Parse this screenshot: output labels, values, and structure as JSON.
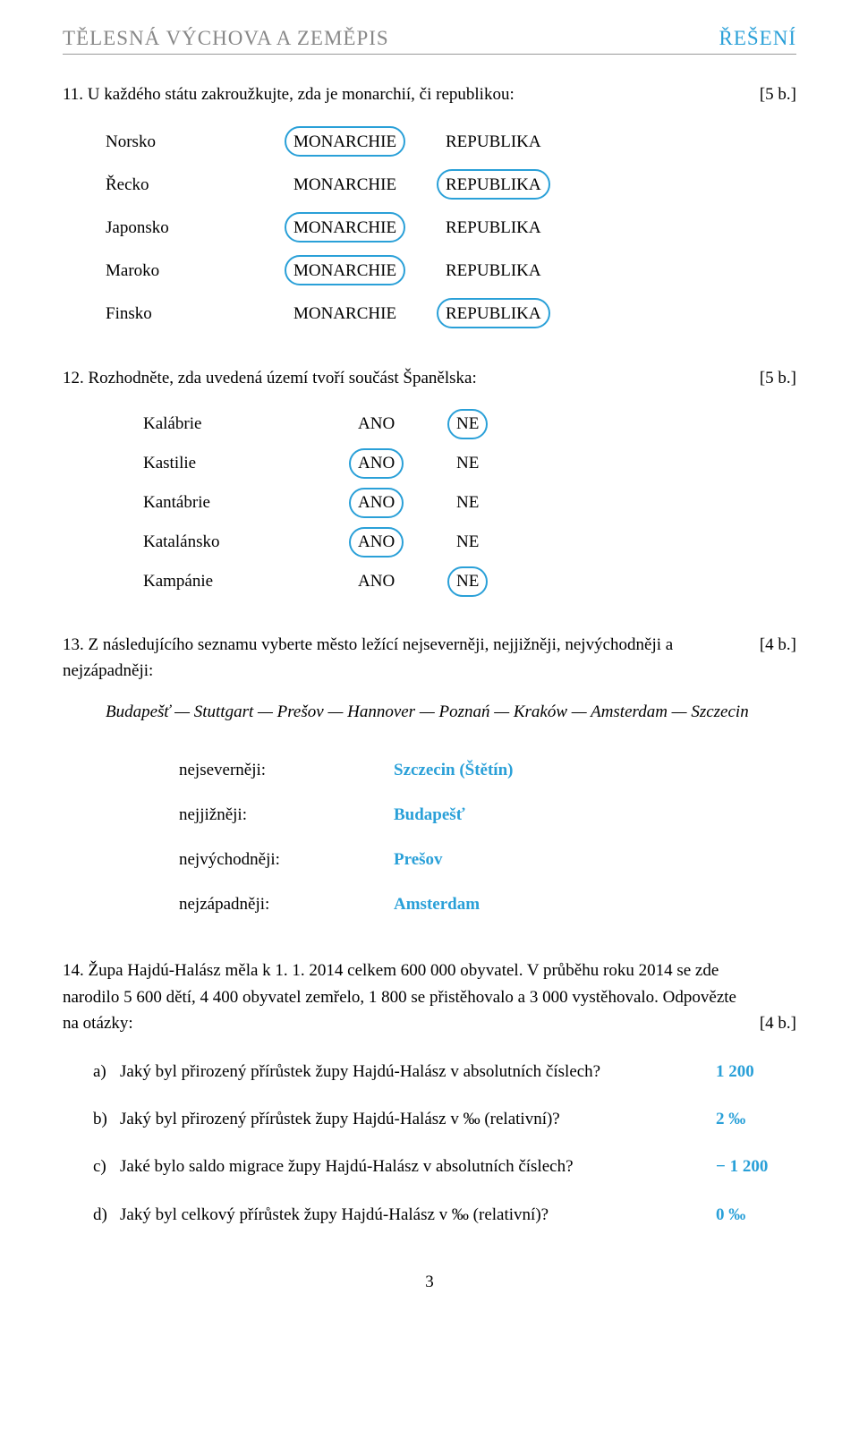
{
  "colors": {
    "accent": "#2aa0d8",
    "muted": "#888888"
  },
  "header": {
    "title": "TĚLESNÁ VÝCHOVA A ZEMĚPIS",
    "answers": "ŘEŠENÍ"
  },
  "q11": {
    "num": "11.",
    "prompt": "U každého státu zakroužkujte, zda je monarchií, či republikou:",
    "points": "[5 b.]",
    "opt1": "MONARCHIE",
    "opt2": "REPUBLIKA",
    "rows": [
      {
        "country": "Norsko",
        "circled": 1
      },
      {
        "country": "Řecko",
        "circled": 2
      },
      {
        "country": "Japonsko",
        "circled": 1
      },
      {
        "country": "Maroko",
        "circled": 1
      },
      {
        "country": "Finsko",
        "circled": 2
      }
    ]
  },
  "q12": {
    "num": "12.",
    "prompt": "Rozhodněte, zda uvedená území tvoří součást Španělska:",
    "points": "[5 b.]",
    "opt1": "ANO",
    "opt2": "NE",
    "rows": [
      {
        "region": "Kalábrie",
        "circled": 2
      },
      {
        "region": "Kastilie",
        "circled": 1
      },
      {
        "region": "Kantábrie",
        "circled": 1
      },
      {
        "region": "Katalánsko",
        "circled": 1
      },
      {
        "region": "Kampánie",
        "circled": 2
      }
    ]
  },
  "q13": {
    "num": "13.",
    "prompt": "Z následujícího seznamu vyberte město ležící nejseverněji, nejjižněji, nejvýchodněji a nejzápadněji:",
    "points": "[4 b.]",
    "cities": "Budapešť — Stuttgart — Prešov — Hannover — Poznań — Kraków — Amsterdam — Szczecin",
    "dirs": [
      {
        "label": "nejseverněji:",
        "answer": "Szczecin (Štětín)"
      },
      {
        "label": "nejjižněji:",
        "answer": "Budapešť"
      },
      {
        "label": "nejvýchodněji:",
        "answer": "Prešov"
      },
      {
        "label": "nejzápadněji:",
        "answer": "Amsterdam"
      }
    ]
  },
  "q14": {
    "num": "14.",
    "text1": "Župa Hajdú-Halász měla k 1. 1. 2014 celkem 600 000 obyvatel. V průběhu roku 2014 se zde narodilo 5 600 dětí, 4 400 obyvatel zemřelo, 1 800 se přistěhovalo a 3 000 vystěhovalo. Odpovězte na otázky:",
    "points": "[4 b.]",
    "subs": [
      {
        "letter": "a)",
        "q": "Jaký byl přirozený přírůstek župy Hajdú-Halász v absolutních číslech?",
        "a": "1 200"
      },
      {
        "letter": "b)",
        "q": "Jaký byl přirozený přírůstek župy Hajdú-Halász v ‰ (relativní)?",
        "a": "2 ‰"
      },
      {
        "letter": "c)",
        "q": "Jaké bylo saldo migrace župy Hajdú-Halász v absolutních číslech?",
        "a": "− 1 200"
      },
      {
        "letter": "d)",
        "q": "Jaký byl celkový přírůstek župy Hajdú-Halász v ‰ (relativní)?",
        "a": "0 ‰"
      }
    ]
  },
  "page_number": "3"
}
